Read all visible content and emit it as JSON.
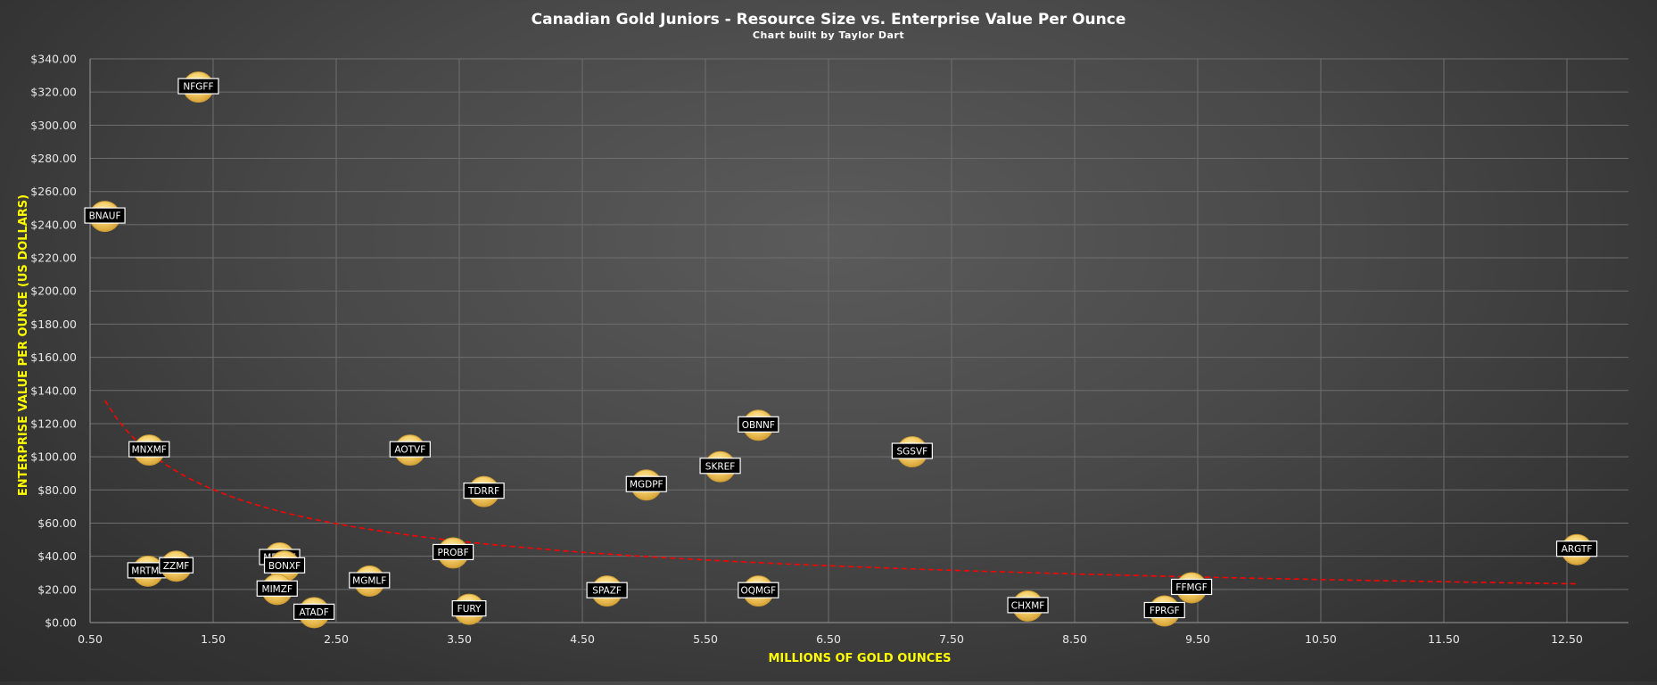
{
  "chart_data": {
    "type": "scatter",
    "title": "Canadian Gold Juniors - Resource Size vs. Enterprise Value Per Ounce",
    "subtitle": "Chart built by Taylor Dart",
    "xlabel": "MILLIONS OF GOLD OUNCES",
    "ylabel": "ENTERPRISE VALUE PER OUNCE (US DOLLARS)",
    "xlim": [
      0.5,
      13.0
    ],
    "ylim": [
      0,
      340
    ],
    "x_ticks": [
      0.5,
      1.5,
      2.5,
      3.5,
      4.5,
      5.5,
      6.5,
      7.5,
      8.5,
      9.5,
      10.5,
      11.5,
      12.5
    ],
    "x_tick_labels": [
      "0.50",
      "1.50",
      "2.50",
      "3.50",
      "4.50",
      "5.50",
      "6.50",
      "7.50",
      "8.50",
      "9.50",
      "10.50",
      "11.50",
      "12.50"
    ],
    "y_ticks": [
      0,
      20,
      40,
      60,
      80,
      100,
      120,
      140,
      160,
      180,
      200,
      220,
      240,
      260,
      280,
      300,
      320,
      340
    ],
    "y_tick_labels": [
      "$0.00",
      "$20.00",
      "$40.00",
      "$60.00",
      "$80.00",
      "$100.00",
      "$120.00",
      "$140.00",
      "$160.00",
      "$180.00",
      "$200.00",
      "$220.00",
      "$240.00",
      "$260.00",
      "$280.00",
      "$300.00",
      "$320.00",
      "$340.00"
    ],
    "grid": true,
    "legend": "none",
    "points": [
      {
        "label": "NFGFF",
        "x": 1.38,
        "y": 323
      },
      {
        "label": "BNAUF",
        "x": 0.62,
        "y": 245
      },
      {
        "label": "MNXMF",
        "x": 0.98,
        "y": 104
      },
      {
        "label": "MRTMF",
        "x": 0.97,
        "y": 31
      },
      {
        "label": "ZZMF",
        "x": 1.2,
        "y": 34
      },
      {
        "label": "MPUCF",
        "x": 2.04,
        "y": 39
      },
      {
        "label": "BONXF",
        "x": 2.08,
        "y": 34
      },
      {
        "label": "MIMZF",
        "x": 2.02,
        "y": 20
      },
      {
        "label": "ATADF",
        "x": 2.32,
        "y": 6
      },
      {
        "label": "MGMLF",
        "x": 2.77,
        "y": 25
      },
      {
        "label": "AOTVF",
        "x": 3.1,
        "y": 104
      },
      {
        "label": "PROBF",
        "x": 3.45,
        "y": 42
      },
      {
        "label": "TDRRF",
        "x": 3.7,
        "y": 79
      },
      {
        "label": "FURY",
        "x": 3.58,
        "y": 8
      },
      {
        "label": "SPAZF",
        "x": 4.7,
        "y": 19
      },
      {
        "label": "MGDPF",
        "x": 5.02,
        "y": 83
      },
      {
        "label": "SKREF",
        "x": 5.62,
        "y": 94
      },
      {
        "label": "OBNNF",
        "x": 5.93,
        "y": 119
      },
      {
        "label": "OQMGF",
        "x": 5.93,
        "y": 19
      },
      {
        "label": "SGSVF",
        "x": 7.18,
        "y": 103
      },
      {
        "label": "CHXMF",
        "x": 8.12,
        "y": 10
      },
      {
        "label": "FFMGF",
        "x": 9.45,
        "y": 21
      },
      {
        "label": "FPRGF",
        "x": 9.23,
        "y": 7
      },
      {
        "label": "ARGTF",
        "x": 12.58,
        "y": 44
      }
    ],
    "trendline": {
      "type": "power",
      "x_range": [
        0.62,
        12.6
      ],
      "coefficient": 101.5,
      "exponent": -0.58,
      "color": "#ff0000",
      "style": "dashed"
    },
    "colors": {
      "marker_fill": "#f2c55c",
      "marker_highlight": "#fff0b8",
      "trendline": "#ff0000",
      "axis_label": "#ffff00",
      "title": "#ffffff"
    }
  }
}
